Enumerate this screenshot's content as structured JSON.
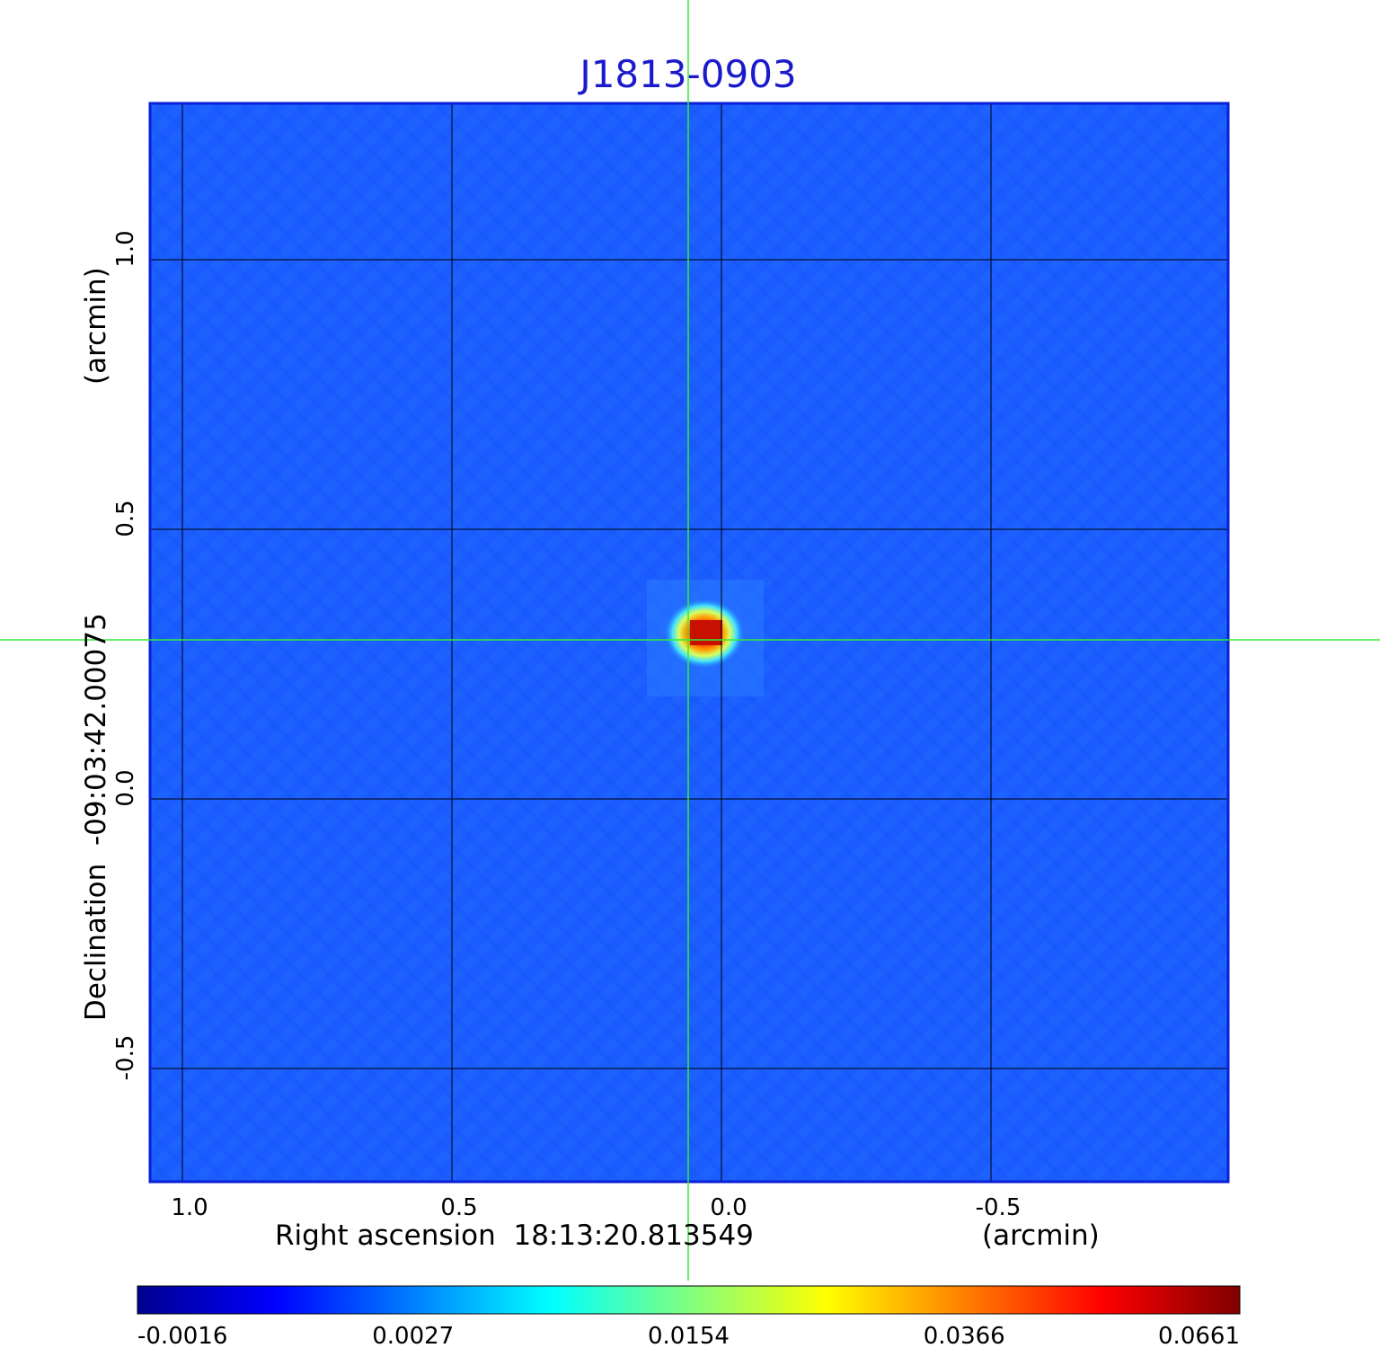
{
  "chart_data": {
    "type": "heatmap",
    "title": "J1813-0903",
    "xlabel": "Right ascension  18:13:20.813549",
    "xlabel_unit": "(arcmin)",
    "ylabel": "Declination  -09:03:42.00075",
    "ylabel_unit": "(arcmin)",
    "x_ticks": [
      1.0,
      0.5,
      0.0,
      -0.5
    ],
    "x_tick_labels": [
      "1.0",
      "0.5",
      "0.0",
      "-0.5"
    ],
    "y_ticks": [
      1.0,
      0.5,
      0.0,
      -0.5
    ],
    "y_tick_labels": [
      "1.0",
      "0.5",
      "0.0",
      "-0.5"
    ],
    "xlim": [
      1.06,
      -0.94
    ],
    "ylim": [
      -0.71,
      1.29
    ],
    "grid": true,
    "crosshair": {
      "x": 0.058,
      "y": 0.3
    },
    "source_peak": {
      "x": 0.03,
      "y": 0.31,
      "value": 0.0661
    },
    "colorbar": {
      "ticks": [
        -0.0016,
        0.0027,
        0.0154,
        0.0366,
        0.0661
      ],
      "tick_labels": [
        "-0.0016",
        "0.0027",
        "0.0154",
        "0.0366",
        "0.0661"
      ],
      "colormap": "jet"
    },
    "colors": {
      "title": "#1a1acc",
      "background_field": "#1a5cff",
      "grid": "#000000",
      "crosshair": "#33ee33",
      "frame": "#0a1fd6"
    }
  }
}
